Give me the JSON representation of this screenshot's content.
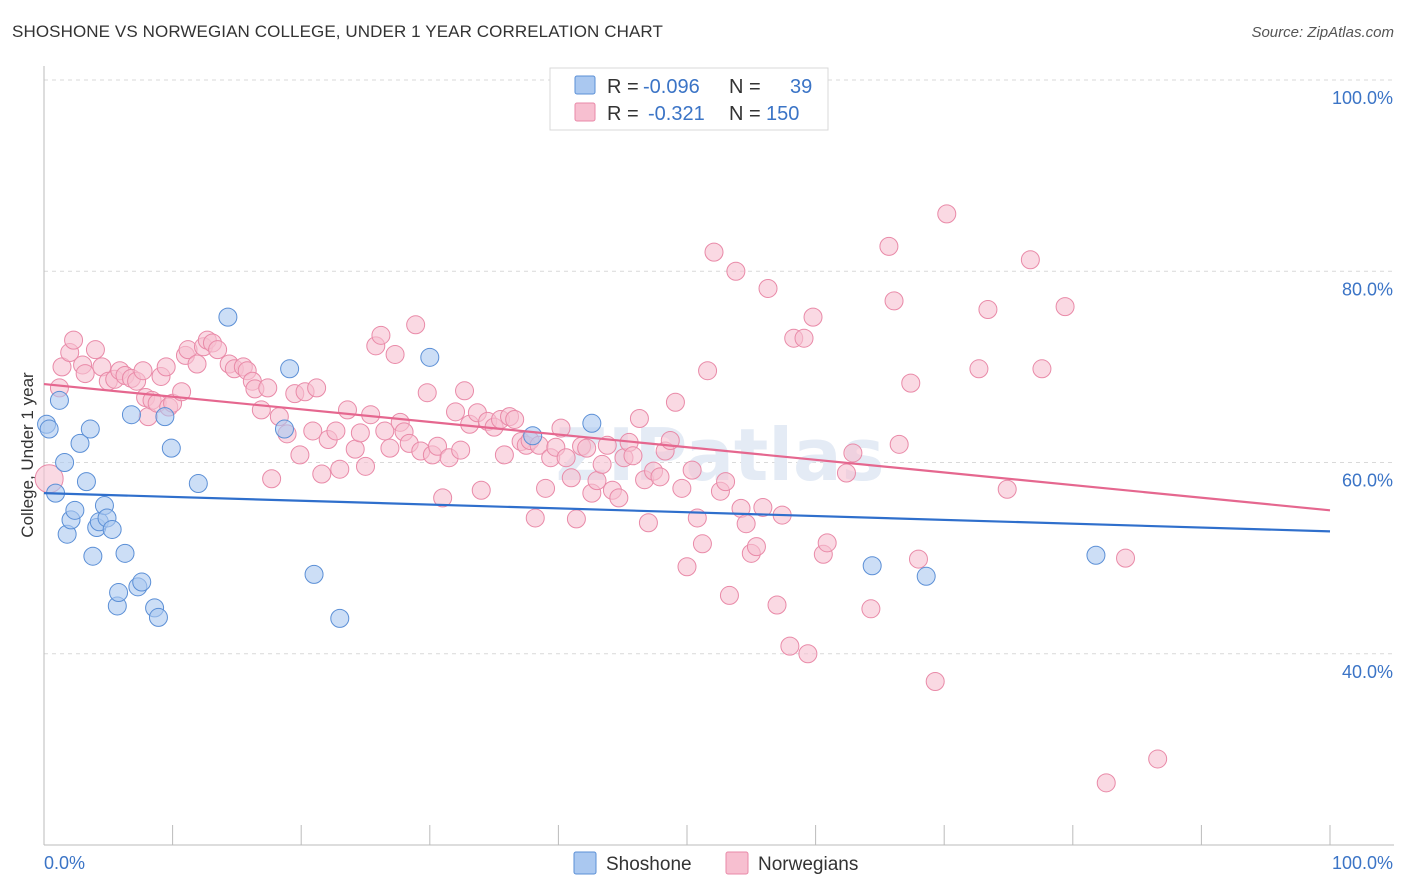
{
  "title": "SHOSHONE VS NORWEGIAN COLLEGE, UNDER 1 YEAR CORRELATION CHART",
  "source": "Source: ZipAtlas.com",
  "watermark": "ZIPatlas",
  "colors": {
    "shoshone_fill": "#aac8f0",
    "shoshone_stroke": "#5b8fd6",
    "shoshone_line": "#2f6fcc",
    "norwegian_fill": "#f7bfd0",
    "norwegian_stroke": "#e98aa8",
    "norwegian_line": "#e5678f",
    "tick_text": "#3b74c6",
    "grid": "#d9d9d9"
  },
  "legend": {
    "rows": [
      {
        "r_label": "R =",
        "r_value": "-0.096",
        "n_label": "N =",
        "n_value": "39"
      },
      {
        "r_label": "R =",
        "r_value": "-0.321",
        "n_label": "N =",
        "n_value": "150"
      }
    ]
  },
  "chart_data": {
    "type": "scatter",
    "xlabel": "",
    "ylabel": "College, Under 1 year",
    "xlim": [
      0,
      100
    ],
    "ylim": [
      20,
      100
    ],
    "x_tick_labels": [
      "0.0%",
      "100.0%"
    ],
    "y_tick_labels": [
      {
        "value": 100,
        "label": "100.0%"
      },
      {
        "value": 80,
        "label": "80.0%"
      },
      {
        "value": 60,
        "label": "60.0%"
      },
      {
        "value": 40,
        "label": "40.0%"
      }
    ],
    "grid": true,
    "legend_position": "top-center",
    "series": [
      {
        "name": "Shoshone",
        "trend": {
          "x": [
            0,
            100
          ],
          "y": [
            56.8,
            52.8
          ]
        },
        "points": [
          [
            0.2,
            64
          ],
          [
            0.4,
            63.5
          ],
          [
            0.9,
            56.8
          ],
          [
            1.2,
            66.5
          ],
          [
            1.6,
            60
          ],
          [
            1.8,
            52.5
          ],
          [
            2.1,
            54
          ],
          [
            2.4,
            55
          ],
          [
            2.8,
            62
          ],
          [
            3.3,
            58
          ],
          [
            3.6,
            63.5
          ],
          [
            3.8,
            50.2
          ],
          [
            4.1,
            53.2
          ],
          [
            4.3,
            53.8
          ],
          [
            4.7,
            55.5
          ],
          [
            4.9,
            54.2
          ],
          [
            5.3,
            53
          ],
          [
            5.7,
            45
          ],
          [
            5.8,
            46.4
          ],
          [
            6.3,
            50.5
          ],
          [
            6.8,
            65
          ],
          [
            7.3,
            47
          ],
          [
            7.6,
            47.5
          ],
          [
            8.6,
            44.8
          ],
          [
            8.9,
            43.8
          ],
          [
            9.4,
            64.8
          ],
          [
            9.9,
            61.5
          ],
          [
            12.0,
            57.8
          ],
          [
            14.3,
            75.2
          ],
          [
            18.7,
            63.5
          ],
          [
            19.1,
            69.8
          ],
          [
            21.0,
            48.3
          ],
          [
            23.0,
            43.7
          ],
          [
            30.0,
            71.0
          ],
          [
            38.0,
            62.8
          ],
          [
            42.6,
            64.1
          ],
          [
            64.4,
            49.2
          ],
          [
            68.6,
            48.1
          ],
          [
            81.8,
            50.3
          ]
        ]
      },
      {
        "name": "Norwegians",
        "trend": {
          "x": [
            0,
            100
          ],
          "y": [
            68.2,
            55.0
          ]
        },
        "points": [
          [
            0.4,
            58.3
          ],
          [
            1.2,
            67.8
          ],
          [
            1.4,
            70
          ],
          [
            2.0,
            71.5
          ],
          [
            2.3,
            72.8
          ],
          [
            3.0,
            70.2
          ],
          [
            3.2,
            69.3
          ],
          [
            4.0,
            71.8
          ],
          [
            4.5,
            70
          ],
          [
            5.0,
            68.5
          ],
          [
            5.5,
            68.7
          ],
          [
            5.9,
            69.6
          ],
          [
            6.3,
            69.1
          ],
          [
            6.8,
            68.8
          ],
          [
            7.2,
            68.5
          ],
          [
            7.7,
            69.6
          ],
          [
            7.9,
            66.8
          ],
          [
            8.1,
            64.8
          ],
          [
            8.4,
            66.5
          ],
          [
            8.8,
            66.2
          ],
          [
            9.1,
            69
          ],
          [
            9.5,
            70
          ],
          [
            9.7,
            65.8
          ],
          [
            10.0,
            66.2
          ],
          [
            10.7,
            67.4
          ],
          [
            11.0,
            71.2
          ],
          [
            11.2,
            71.8
          ],
          [
            11.9,
            70.3
          ],
          [
            12.4,
            72.1
          ],
          [
            12.7,
            72.8
          ],
          [
            13.1,
            72.5
          ],
          [
            13.5,
            71.8
          ],
          [
            14.4,
            70.3
          ],
          [
            14.8,
            69.8
          ],
          [
            15.5,
            70
          ],
          [
            15.8,
            69.6
          ],
          [
            16.2,
            68.5
          ],
          [
            16.4,
            67.7
          ],
          [
            16.9,
            65.5
          ],
          [
            17.4,
            67.8
          ],
          [
            17.7,
            58.3
          ],
          [
            18.3,
            64.8
          ],
          [
            18.9,
            63
          ],
          [
            19.5,
            67.2
          ],
          [
            19.9,
            60.8
          ],
          [
            20.3,
            67.4
          ],
          [
            20.9,
            63.3
          ],
          [
            21.2,
            67.8
          ],
          [
            21.6,
            58.8
          ],
          [
            22.1,
            62.4
          ],
          [
            22.7,
            63.3
          ],
          [
            23.0,
            59.3
          ],
          [
            23.6,
            65.5
          ],
          [
            24.2,
            61.4
          ],
          [
            24.6,
            63.1
          ],
          [
            25.0,
            59.6
          ],
          [
            25.4,
            65
          ],
          [
            25.8,
            72.2
          ],
          [
            26.2,
            73.3
          ],
          [
            26.5,
            63.3
          ],
          [
            26.9,
            61.5
          ],
          [
            27.3,
            71.3
          ],
          [
            27.7,
            64.2
          ],
          [
            28.0,
            63.2
          ],
          [
            28.4,
            62
          ],
          [
            28.9,
            74.4
          ],
          [
            29.3,
            61.2
          ],
          [
            29.8,
            67.3
          ],
          [
            30.2,
            60.8
          ],
          [
            30.6,
            61.7
          ],
          [
            31.0,
            56.3
          ],
          [
            31.5,
            60.5
          ],
          [
            32.0,
            65.3
          ],
          [
            32.4,
            61.3
          ],
          [
            32.7,
            67.5
          ],
          [
            33.1,
            64
          ],
          [
            33.7,
            65.2
          ],
          [
            34.0,
            57.1
          ],
          [
            34.5,
            64.3
          ],
          [
            35.0,
            63.7
          ],
          [
            35.5,
            64.5
          ],
          [
            35.8,
            60.8
          ],
          [
            36.2,
            64.8
          ],
          [
            36.6,
            64.5
          ],
          [
            37.1,
            62.2
          ],
          [
            37.5,
            61.8
          ],
          [
            37.8,
            62.3
          ],
          [
            38.2,
            54.2
          ],
          [
            38.5,
            61.8
          ],
          [
            39.0,
            57.3
          ],
          [
            39.4,
            60.5
          ],
          [
            39.8,
            61.6
          ],
          [
            40.2,
            63.6
          ],
          [
            40.6,
            60.5
          ],
          [
            41.0,
            58.4
          ],
          [
            41.4,
            54.1
          ],
          [
            41.8,
            61.7
          ],
          [
            42.2,
            61.5
          ],
          [
            42.6,
            56.8
          ],
          [
            43.0,
            58.1
          ],
          [
            43.4,
            59.8
          ],
          [
            43.8,
            61.8
          ],
          [
            44.2,
            57.1
          ],
          [
            44.7,
            56.3
          ],
          [
            45.1,
            60.5
          ],
          [
            45.5,
            62.1
          ],
          [
            45.8,
            60.7
          ],
          [
            46.3,
            64.6
          ],
          [
            46.7,
            58.2
          ],
          [
            47.0,
            53.7
          ],
          [
            47.4,
            59.1
          ],
          [
            47.9,
            58.5
          ],
          [
            48.3,
            61.2
          ],
          [
            48.7,
            62.3
          ],
          [
            49.1,
            66.3
          ],
          [
            49.6,
            57.3
          ],
          [
            50.0,
            49.1
          ],
          [
            50.4,
            59.2
          ],
          [
            50.8,
            54.2
          ],
          [
            51.2,
            51.5
          ],
          [
            51.6,
            69.6
          ],
          [
            52.1,
            82
          ],
          [
            52.6,
            57
          ],
          [
            53.0,
            58
          ],
          [
            53.3,
            46.1
          ],
          [
            53.8,
            80
          ],
          [
            54.2,
            55.2
          ],
          [
            54.6,
            53.6
          ],
          [
            55.0,
            50.5
          ],
          [
            55.4,
            51.2
          ],
          [
            55.9,
            55.3
          ],
          [
            56.3,
            78.2
          ],
          [
            57.0,
            45.1
          ],
          [
            57.4,
            54.5
          ],
          [
            58.0,
            40.8
          ],
          [
            58.3,
            73
          ],
          [
            59.1,
            73
          ],
          [
            59.4,
            40
          ],
          [
            59.8,
            75.2
          ],
          [
            60.6,
            50.4
          ],
          [
            60.9,
            51.6
          ],
          [
            62.4,
            58.9
          ],
          [
            62.9,
            61
          ],
          [
            64.3,
            44.7
          ],
          [
            65.7,
            82.6
          ],
          [
            66.1,
            76.9
          ],
          [
            66.5,
            61.9
          ],
          [
            67.4,
            68.3
          ],
          [
            68.0,
            49.9
          ],
          [
            69.3,
            37.1
          ],
          [
            70.2,
            86
          ],
          [
            72.7,
            69.8
          ],
          [
            73.4,
            76
          ],
          [
            74.9,
            57.2
          ],
          [
            76.7,
            81.2
          ],
          [
            77.6,
            69.8
          ],
          [
            79.4,
            76.3
          ],
          [
            82.6,
            26.5
          ],
          [
            84.1,
            50
          ],
          [
            86.6,
            29
          ]
        ]
      }
    ]
  },
  "bottom_legend": {
    "items": [
      "Shoshone",
      "Norwegians"
    ]
  }
}
